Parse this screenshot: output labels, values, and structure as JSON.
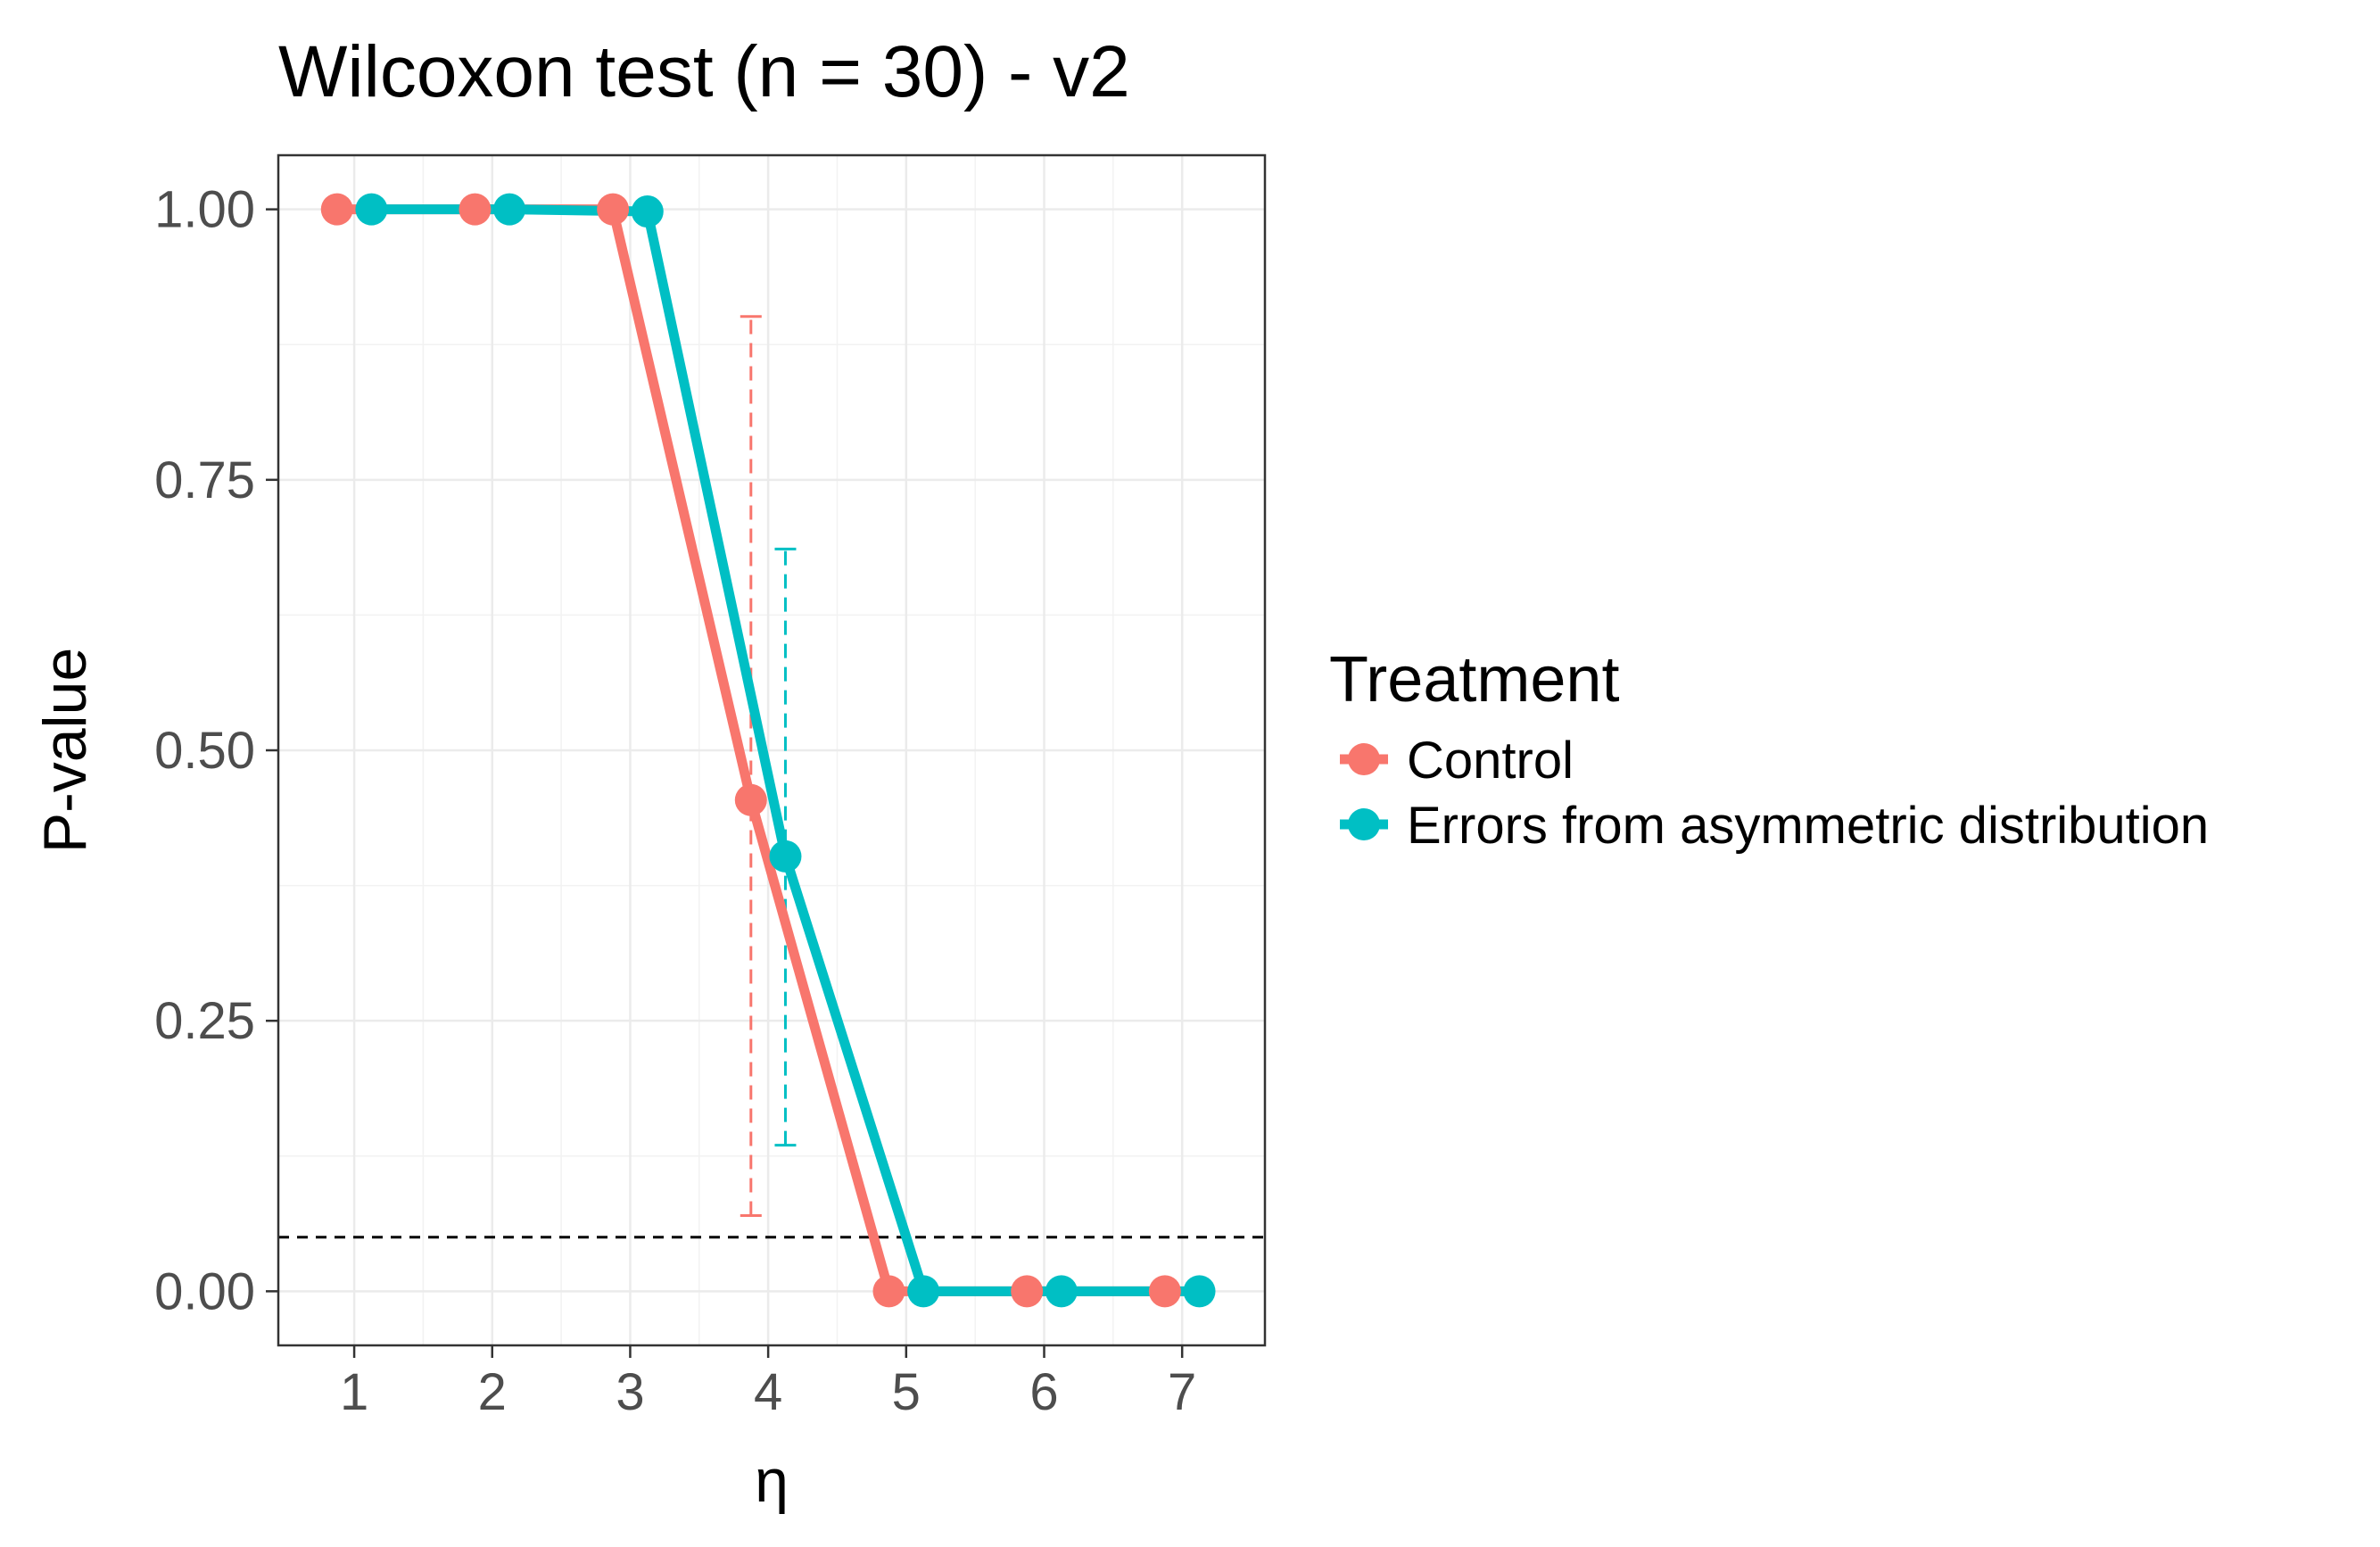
{
  "chart_data": {
    "type": "line",
    "title": "Wilcoxon test (n = 30) - v2",
    "xlabel": "η",
    "ylabel": "P-value",
    "x_ticks": [
      1,
      2,
      3,
      4,
      5,
      6,
      7
    ],
    "x_tick_labels": [
      "1",
      "2",
      "3",
      "4",
      "5",
      "6",
      "7"
    ],
    "y_ticks": [
      0,
      0.25,
      0.5,
      0.75,
      1.0
    ],
    "y_tick_labels": [
      "0.00",
      "0.25",
      "0.50",
      "0.75",
      "1.00"
    ],
    "xlim": [
      0.45,
      7.6
    ],
    "ylim": [
      -0.05,
      1.05
    ],
    "grid": true,
    "reference_line": {
      "y": 0.05,
      "style": "dashed",
      "color": "#000000"
    },
    "legend": {
      "title": "Treatment",
      "position": "right"
    },
    "series": [
      {
        "name": "Control",
        "color": "#F8766D",
        "x": [
          0.875,
          1.875,
          2.875,
          3.875,
          4.875,
          5.875,
          6.875
        ],
        "y": [
          1.0,
          1.0,
          1.0,
          0.454,
          0.0,
          0.0,
          0.0
        ],
        "error_bars": [
          {
            "x": 3.875,
            "low": 0.07,
            "high": 0.901
          }
        ]
      },
      {
        "name": "Errors from asymmetric distribution",
        "color": "#00BFC4",
        "x": [
          1.125,
          2.125,
          3.125,
          4.125,
          5.125,
          6.125,
          7.125
        ],
        "y": [
          1.0,
          1.0,
          0.998,
          0.402,
          0.0,
          0.0,
          0.0
        ],
        "error_bars": [
          {
            "x": 4.125,
            "low": 0.135,
            "high": 0.686
          }
        ]
      }
    ]
  }
}
